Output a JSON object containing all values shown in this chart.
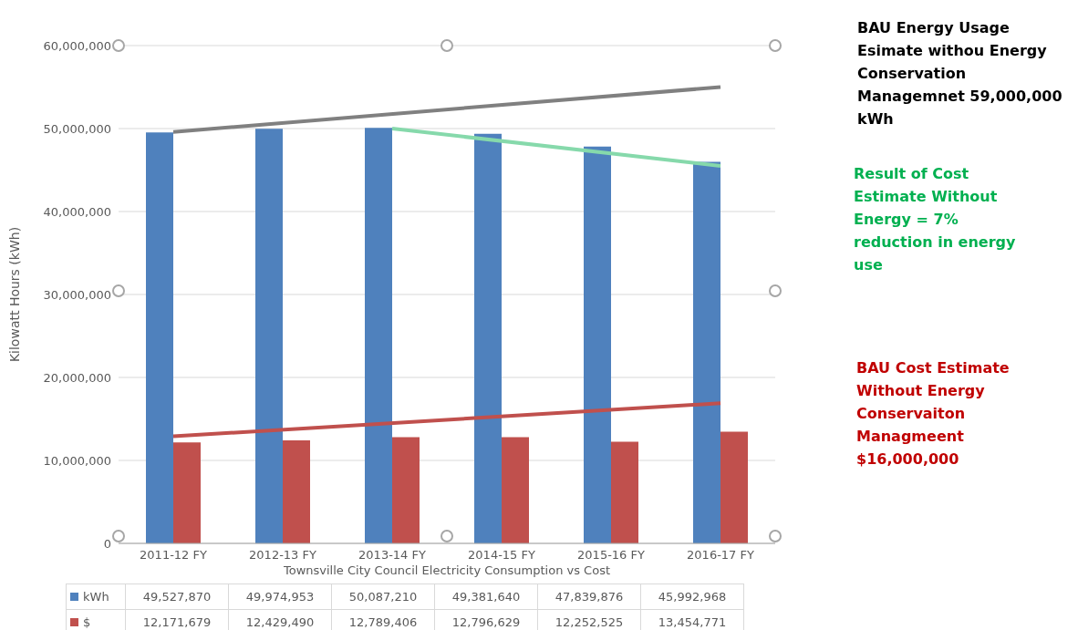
{
  "chart_data": {
    "type": "bar",
    "xlabel": "Townsville City Council Electricity Consumption vs Cost",
    "ylabel": "Kilowatt Hours (kWh)",
    "categories": [
      "2011-12 FY",
      "2012-13 FY",
      "2013-14 FY",
      "2014-15 FY",
      "2015-16 FY",
      "2016-17 FY"
    ],
    "series": [
      {
        "name": "kWh",
        "color": "#4f81bd",
        "values": [
          49527870,
          49974953,
          50087210,
          49381640,
          47839876,
          45992968
        ],
        "value_labels": [
          "49,527,870",
          "49,974,953",
          "50,087,210",
          "49,381,640",
          "47,839,876",
          "45,992,968"
        ]
      },
      {
        "name": "$",
        "color": "#c0504d",
        "values": [
          12171679,
          12429490,
          12789406,
          12796629,
          12252525,
          13454771
        ],
        "value_labels": [
          "12,171,679",
          "12,429,490",
          "12,789,406",
          "12,796,629",
          "12,252,525",
          "13,454,771"
        ]
      },
      {
        "type": "line",
        "color": "#808080",
        "x": [
          "2011-12 FY",
          "2016-17 FY"
        ],
        "values": [
          49600000,
          55000000
        ]
      },
      {
        "type": "line",
        "color": "#86d9ab",
        "x": [
          "2013-14 FY",
          "2016-17 FY"
        ],
        "values": [
          50000000,
          45500000
        ]
      },
      {
        "type": "line",
        "color": "#c0504d",
        "x": [
          "2011-12 FY",
          "2016-17 FY"
        ],
        "values": [
          12900000,
          16900000
        ]
      }
    ],
    "ylim": [
      0,
      60000000
    ],
    "yticks": [
      0,
      {
        "value": 10000000,
        "label": "10,000,000"
      },
      {
        "value": 20000000,
        "label": "20,000,000"
      },
      {
        "value": 30000000,
        "label": "30,000,000"
      },
      {
        "value": 40000000,
        "label": "40,000,000"
      },
      {
        "value": 50000000,
        "label": "50,000,000"
      },
      {
        "value": 60000000,
        "label": "60,000,000"
      }
    ],
    "grid": "y",
    "legend": "bottom",
    "line_style": "solid",
    "marker": "none",
    "annotations": [
      "BAU Energy Usage Esimate withou Energy Conservation Managemnet 59,000,000 kWh",
      "Result of Cost Estimate Without Energy = 7% reduction in energy use",
      "BAU Cost Estimate Without Energy Conservaiton Managmeent $16,000,000"
    ]
  }
}
